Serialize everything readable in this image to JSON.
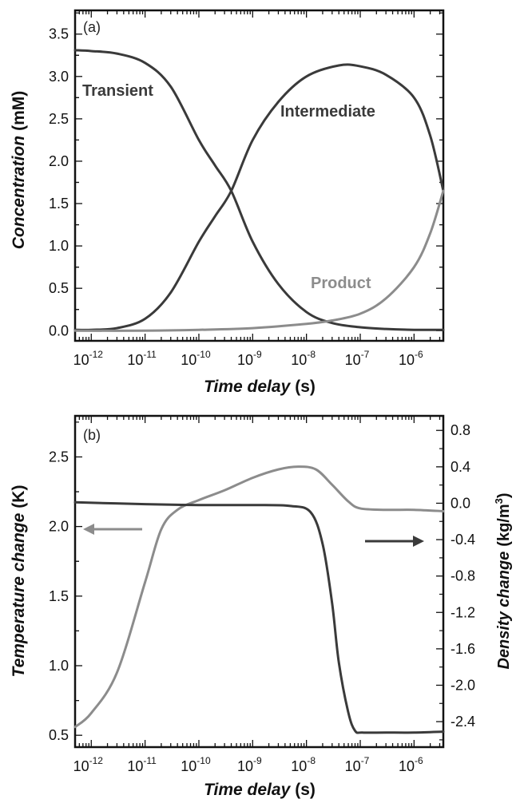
{
  "panels": {
    "a": {
      "label": "(a)"
    },
    "b": {
      "label": "(b)"
    }
  },
  "chart_data": [
    {
      "type": "line",
      "panel_label": "(a)",
      "xlabel_italic": "Time delay",
      "xlabel_unit": "(s)",
      "ylabel_italic": "Concentration",
      "ylabel_unit": "(mM)",
      "x_scale": "log",
      "xlim": [
        "5e-13",
        "3.5e-6"
      ],
      "x_ticks": [
        {
          "base": "10",
          "exp": "-12",
          "value": 1e-12
        },
        {
          "base": "10",
          "exp": "-11",
          "value": 1e-11
        },
        {
          "base": "10",
          "exp": "-10",
          "value": 1e-10
        },
        {
          "base": "10",
          "exp": "-9",
          "value": 1e-09
        },
        {
          "base": "10",
          "exp": "-8",
          "value": 1e-08
        },
        {
          "base": "10",
          "exp": "-7",
          "value": 1e-07
        },
        {
          "base": "10",
          "exp": "-6",
          "value": 1e-06
        }
      ],
      "ylim": [
        -0.12,
        3.78
      ],
      "y_ticks": [
        "0.0",
        "0.5",
        "1.0",
        "1.5",
        "2.0",
        "2.5",
        "3.0",
        "3.5"
      ],
      "grid": false,
      "series": [
        {
          "name": "Transient",
          "color": "#3a3a3a",
          "x": [
            "5e-13",
            "1e-12",
            "3e-12",
            "1e-11",
            "3e-11",
            "1e-10",
            "2e-10",
            "4e-10",
            "1e-9",
            "3e-9",
            "1e-8",
            "3e-8",
            "1e-7",
            "3e-7",
            "1e-6",
            "3.5e-6"
          ],
          "y": [
            3.31,
            3.3,
            3.27,
            3.16,
            2.88,
            2.25,
            1.95,
            1.65,
            1.05,
            0.55,
            0.22,
            0.09,
            0.04,
            0.02,
            0.01,
            0.01
          ]
        },
        {
          "name": "Intermediate",
          "color": "#3a3a3a",
          "x": [
            "5e-13",
            "1e-12",
            "3e-12",
            "1e-11",
            "3e-11",
            "1e-10",
            "2e-10",
            "4e-10",
            "1e-9",
            "3e-9",
            "1e-8",
            "4e-8",
            "1e-7",
            "3e-7",
            "1e-6",
            "2e-6",
            "3.5e-6"
          ],
          "y": [
            0.01,
            0.01,
            0.03,
            0.14,
            0.45,
            1.05,
            1.35,
            1.65,
            2.25,
            2.7,
            3.0,
            3.13,
            3.12,
            3.02,
            2.75,
            2.3,
            1.65
          ]
        },
        {
          "name": "Product",
          "color": "#8c8c8c",
          "x": [
            "5e-13",
            "1e-11",
            "1e-10",
            "1e-9",
            "1e-8",
            "3e-8",
            "1e-7",
            "3e-7",
            "1e-6",
            "2e-6",
            "3.5e-6"
          ],
          "y": [
            0.0,
            0.0,
            0.01,
            0.03,
            0.08,
            0.12,
            0.2,
            0.38,
            0.75,
            1.15,
            1.65
          ]
        }
      ]
    },
    {
      "type": "line",
      "panel_label": "(b)",
      "xlabel_italic": "Time delay",
      "xlabel_unit": "(s)",
      "ylabel_italic": "Temperature change",
      "ylabel_unit": "(K)",
      "y2label_italic": "Density change",
      "y2label_unit_base": "(kg/m",
      "y2label_unit_sup": "3",
      "y2label_unit_end": ")",
      "x_scale": "log",
      "xlim": [
        "5e-13",
        "3.5e-6"
      ],
      "x_ticks": [
        {
          "base": "10",
          "exp": "-12",
          "value": 1e-12
        },
        {
          "base": "10",
          "exp": "-11",
          "value": 1e-11
        },
        {
          "base": "10",
          "exp": "-10",
          "value": 1e-10
        },
        {
          "base": "10",
          "exp": "-9",
          "value": 1e-09
        },
        {
          "base": "10",
          "exp": "-8",
          "value": 1e-08
        },
        {
          "base": "10",
          "exp": "-7",
          "value": 1e-07
        },
        {
          "base": "10",
          "exp": "-6",
          "value": 1e-06
        }
      ],
      "ylim": [
        0.415,
        2.795
      ],
      "y_ticks": [
        "0.5",
        "1.0",
        "1.5",
        "2.0",
        "2.5"
      ],
      "y2lim": [
        -2.68,
        0.96
      ],
      "y2_ticks": [
        "0.8",
        "0.4",
        "0.0",
        "-0.4",
        "-0.8",
        "-1.2",
        "-1.6",
        "-2.0",
        "-2.4"
      ],
      "grid": false,
      "series": [
        {
          "axis": "left",
          "color": "#8c8c8c",
          "x": [
            "5e-13",
            "1e-12",
            "3e-12",
            "1e-11",
            "2e-11",
            "4e-11",
            "1e-10",
            "3e-10",
            "1e-9",
            "3e-9",
            "7e-9",
            "1.5e-8",
            "3e-8",
            "6e-8",
            "1e-7",
            "3e-7",
            "1e-6",
            "3.5e-6"
          ],
          "y": [
            0.56,
            0.66,
            0.95,
            1.6,
            1.98,
            2.12,
            2.19,
            2.26,
            2.35,
            2.41,
            2.43,
            2.41,
            2.3,
            2.18,
            2.13,
            2.12,
            2.12,
            2.11
          ]
        },
        {
          "axis": "right",
          "color": "#3a3a3a",
          "x": [
            "5e-13",
            "1e-11",
            "1e-10",
            "1e-9",
            "5e-9",
            "1.2e-8",
            "2e-8",
            "3e-8",
            "4e-8",
            "6e-8",
            "8e-8",
            "1.1e-7",
            "3e-7",
            "1e-6",
            "3.5e-6"
          ],
          "y": [
            0.01,
            -0.01,
            -0.02,
            -0.02,
            -0.03,
            -0.1,
            -0.45,
            -1.1,
            -1.75,
            -2.3,
            -2.5,
            -2.52,
            -2.52,
            -2.52,
            -2.51
          ]
        }
      ],
      "arrows": [
        {
          "direction": "left",
          "points_to_axis": "left",
          "color": "#8c8c8c"
        },
        {
          "direction": "right",
          "points_to_axis": "right",
          "color": "#3a3a3a"
        }
      ]
    }
  ]
}
